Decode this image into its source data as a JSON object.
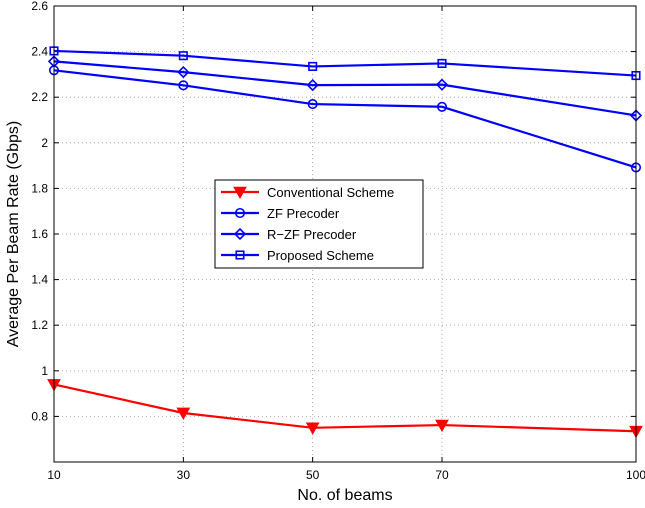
{
  "chart_data": {
    "type": "line",
    "title": "",
    "xlabel": "No. of beams",
    "ylabel": "Average Per Beam Rate (Gbps)",
    "x": [
      10,
      30,
      50,
      70,
      100
    ],
    "xticks": [
      "10",
      "30",
      "50",
      "70",
      "100"
    ],
    "yticks": [
      "0.8",
      "1",
      "1.2",
      "1.4",
      "1.6",
      "1.8",
      "2",
      "2.2",
      "2.4",
      "2.6"
    ],
    "xlim": [
      10,
      100
    ],
    "ylim": [
      0.6,
      2.6
    ],
    "grid": true,
    "legend_position": "center",
    "series": [
      {
        "name": "Conventional Scheme",
        "color": "#ff0000",
        "marker": "triangle-down",
        "values": [
          0.94,
          0.815,
          0.75,
          0.762,
          0.735
        ]
      },
      {
        "name": "ZF Precoder",
        "color": "#0000ff",
        "marker": "circle",
        "values": [
          2.318,
          2.252,
          2.17,
          2.158,
          1.892
        ]
      },
      {
        "name": "R−ZF Precoder",
        "color": "#0000ff",
        "marker": "diamond",
        "values": [
          2.357,
          2.31,
          2.253,
          2.255,
          2.12
        ]
      },
      {
        "name": "Proposed Scheme",
        "color": "#0000ff",
        "marker": "square",
        "values": [
          2.403,
          2.382,
          2.335,
          2.348,
          2.295
        ]
      }
    ]
  }
}
